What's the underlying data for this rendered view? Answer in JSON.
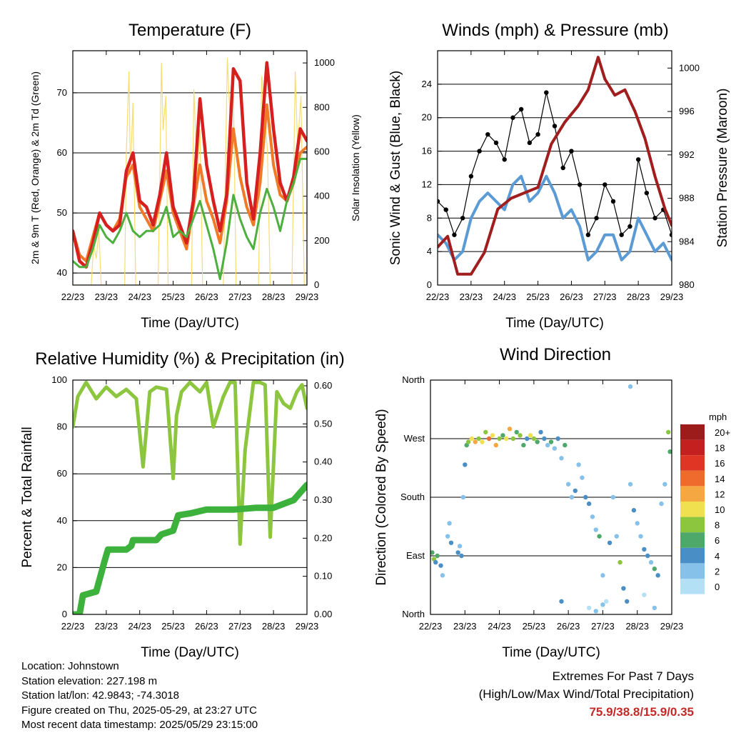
{
  "colors": {
    "temp2m": "#d62020",
    "temp9m": "#f07a28",
    "dewpoint": "#4caf3e",
    "solar": "#f7dc6f",
    "gust": "#000000",
    "wind": "#5b9bd5",
    "pressure": "#a01e1e",
    "rh": "#8cc63e",
    "precip": "#3cb13c",
    "speed_scale": [
      "#b3e0f5",
      "#85c1e9",
      "#4a8ec6",
      "#4ea86a",
      "#8cc63e",
      "#f0e050",
      "#f5a742",
      "#ef6b2d",
      "#e03425",
      "#c42020",
      "#9c1c1c"
    ]
  },
  "x_ticks": [
    "22/23",
    "23/23",
    "24/23",
    "25/23",
    "26/23",
    "27/23",
    "28/23",
    "29/23"
  ],
  "x_label": "Time (Day/UTC)",
  "chart_data": [
    {
      "id": "temperature",
      "type": "line",
      "title": "Temperature (F)",
      "xlabel": "Time (Day/UTC)",
      "ylabel": "2m & 9m T (Red, Orange) & 2m Td (Green)",
      "y2label": "Solar Insolation (Yellow)",
      "ylim": [
        38,
        77
      ],
      "yticks": [
        40,
        50,
        60,
        70
      ],
      "y2lim": [
        0,
        1055
      ],
      "y2ticks": [
        0,
        200,
        400,
        600,
        800,
        1000
      ],
      "xlim": [
        0,
        7
      ],
      "series": [
        {
          "key": "solar",
          "axis": "y2",
          "x": [
            0,
            0.3,
            0.55,
            0.62,
            0.7,
            0.78,
            0.85,
            1.2,
            1.55,
            1.6,
            1.68,
            1.72,
            1.8,
            1.88,
            2.2,
            2.55,
            2.65,
            2.7,
            2.78,
            2.85,
            3.2,
            3.55,
            3.62,
            3.72,
            3.8,
            3.88,
            4.2,
            4.5,
            4.62,
            4.7,
            4.8,
            4.88,
            5.2,
            5.55,
            5.65,
            5.72,
            5.82,
            5.9,
            6.2,
            6.55,
            6.65,
            6.72,
            6.82,
            6.92,
            7.0
          ],
          "values": [
            0,
            0,
            0,
            180,
            120,
            240,
            0,
            0,
            0,
            600,
            960,
            500,
            820,
            0,
            0,
            0,
            1000,
            700,
            850,
            0,
            0,
            0,
            880,
            500,
            700,
            0,
            0,
            0,
            1020,
            750,
            900,
            0,
            0,
            0,
            940,
            800,
            600,
            0,
            0,
            0,
            960,
            620,
            850,
            0,
            0
          ]
        },
        {
          "key": "temp9m",
          "axis": "y",
          "x": [
            0,
            0.2,
            0.4,
            0.6,
            0.8,
            1.0,
            1.2,
            1.4,
            1.6,
            1.8,
            2.0,
            2.2,
            2.4,
            2.6,
            2.8,
            3.0,
            3.2,
            3.4,
            3.6,
            3.8,
            4.0,
            4.2,
            4.4,
            4.6,
            4.8,
            5.0,
            5.2,
            5.4,
            5.6,
            5.8,
            6.0,
            6.2,
            6.4,
            6.6,
            6.8,
            7.0
          ],
          "values": [
            47,
            43,
            42,
            46,
            50,
            48,
            47,
            49,
            56,
            58,
            51,
            49,
            47,
            52,
            57,
            50,
            47,
            44,
            51,
            58,
            52,
            49,
            45,
            52,
            64,
            56,
            51,
            48,
            55,
            68,
            58,
            53,
            52,
            55,
            60,
            61
          ]
        },
        {
          "key": "temp2m",
          "axis": "y",
          "x": [
            0,
            0.2,
            0.4,
            0.6,
            0.8,
            1.0,
            1.2,
            1.4,
            1.6,
            1.8,
            2.0,
            2.2,
            2.4,
            2.6,
            2.8,
            3.0,
            3.2,
            3.4,
            3.6,
            3.8,
            4.0,
            4.2,
            4.4,
            4.6,
            4.8,
            5.0,
            5.2,
            5.4,
            5.6,
            5.8,
            6.0,
            6.2,
            6.4,
            6.6,
            6.8,
            7.0
          ],
          "values": [
            47,
            42,
            41,
            45,
            50,
            48,
            47,
            48,
            57,
            60,
            52,
            51,
            48,
            53,
            60,
            51,
            48,
            45,
            52,
            69,
            58,
            52,
            47,
            53,
            74,
            72,
            55,
            49,
            60,
            75,
            64,
            55,
            52,
            56,
            64,
            62
          ]
        },
        {
          "key": "dewpoint",
          "axis": "y",
          "x": [
            0,
            0.2,
            0.4,
            0.6,
            0.8,
            1.0,
            1.2,
            1.4,
            1.6,
            1.8,
            2.0,
            2.2,
            2.4,
            2.6,
            2.8,
            3.0,
            3.2,
            3.4,
            3.6,
            3.8,
            4.0,
            4.2,
            4.4,
            4.6,
            4.8,
            5.0,
            5.2,
            5.4,
            5.6,
            5.8,
            6.0,
            6.2,
            6.4,
            6.6,
            6.8,
            7.0
          ],
          "values": [
            42,
            41,
            41,
            44,
            48,
            46,
            45,
            47,
            50,
            47,
            46,
            47,
            47,
            48,
            51,
            46,
            47,
            46,
            49,
            52,
            48,
            44,
            39,
            45,
            53,
            49,
            46,
            44,
            50,
            54,
            51,
            47,
            52,
            55,
            59,
            59
          ]
        }
      ]
    },
    {
      "id": "winds",
      "type": "line",
      "title": "Winds (mph) & Pressure (mb)",
      "xlabel": "Time (Day/UTC)",
      "ylabel": "Sonic Wind & Gust (Blue, Black)",
      "y2label": "Station Pressure (Maroon)",
      "ylim": [
        0,
        28
      ],
      "yticks": [
        0,
        4,
        8,
        12,
        16,
        20,
        24
      ],
      "y2lim": [
        980,
        1001.6
      ],
      "y2ticks": [
        980,
        984,
        988,
        992,
        996,
        1000
      ],
      "xlim": [
        0,
        7
      ],
      "series": [
        {
          "key": "gust",
          "axis": "y",
          "x": [
            0,
            0.25,
            0.5,
            0.75,
            1.0,
            1.25,
            1.5,
            1.75,
            2.0,
            2.25,
            2.5,
            2.75,
            3.0,
            3.25,
            3.5,
            3.75,
            4.0,
            4.25,
            4.5,
            4.75,
            5.0,
            5.25,
            5.5,
            5.75,
            6.0,
            6.25,
            6.5,
            6.75,
            7.0
          ],
          "values": [
            10,
            9,
            6,
            8,
            13,
            16,
            18,
            17,
            15,
            20,
            21,
            17,
            18,
            23,
            19,
            14,
            16,
            12,
            6,
            8,
            12,
            10,
            6,
            7,
            15,
            11,
            8,
            9,
            6
          ]
        },
        {
          "key": "wind",
          "axis": "y",
          "x": [
            0,
            0.25,
            0.5,
            0.75,
            1.0,
            1.25,
            1.5,
            1.75,
            2.0,
            2.25,
            2.5,
            2.75,
            3.0,
            3.25,
            3.5,
            3.75,
            4.0,
            4.25,
            4.5,
            4.75,
            5.0,
            5.25,
            5.5,
            5.75,
            6.0,
            6.25,
            6.5,
            6.75,
            7.0
          ],
          "values": [
            6,
            5,
            3,
            4,
            8,
            10,
            11,
            10,
            9,
            12,
            13,
            10,
            11,
            13,
            11,
            8,
            9,
            7,
            3,
            4,
            6,
            6,
            3,
            4,
            8,
            6,
            4,
            5,
            3
          ]
        },
        {
          "key": "pressure",
          "axis": "y2",
          "x": [
            0,
            0.3,
            0.6,
            1.0,
            1.4,
            1.8,
            2.2,
            2.6,
            3.0,
            3.4,
            3.8,
            4.2,
            4.5,
            4.8,
            5.0,
            5.3,
            5.6,
            5.9,
            6.2,
            6.5,
            6.8,
            7.0
          ],
          "values": [
            983.5,
            984.5,
            981,
            981,
            983,
            987,
            988,
            988.5,
            989,
            993,
            995,
            996.5,
            998,
            1001,
            999,
            997.5,
            998,
            996,
            993.5,
            990,
            987,
            985.5
          ]
        }
      ]
    },
    {
      "id": "humidity",
      "type": "line",
      "title": "Relative Humidity (%) & Precipitation (in)",
      "xlabel": "Time (Day/UTC)",
      "ylabel": "Percent & Total Rainfall",
      "ylim": [
        0,
        100
      ],
      "yticks": [
        0,
        20,
        40,
        60,
        80,
        100
      ],
      "y2lim": [
        0,
        0.615
      ],
      "y2ticks": [
        "0.00",
        "0.10",
        "0.20",
        "0.30",
        "0.40",
        "0.50",
        "0.60"
      ],
      "xlim": [
        0,
        7
      ],
      "series": [
        {
          "key": "rh",
          "axis": "y",
          "x": [
            0,
            0.15,
            0.4,
            0.7,
            1.0,
            1.3,
            1.6,
            1.9,
            2.1,
            2.3,
            2.5,
            2.8,
            3.0,
            3.1,
            3.25,
            3.5,
            3.8,
            4.0,
            4.2,
            4.5,
            4.7,
            4.85,
            5.0,
            5.15,
            5.4,
            5.6,
            5.75,
            5.9,
            6.1,
            6.3,
            6.5,
            6.7,
            6.85,
            7.0
          ],
          "values": [
            80,
            93,
            99,
            92,
            97,
            93,
            96,
            92,
            63,
            95,
            97,
            96,
            58,
            85,
            95,
            99,
            95,
            99,
            80,
            93,
            99,
            99,
            30,
            70,
            99,
            99,
            98,
            33,
            95,
            90,
            88,
            95,
            98,
            88
          ]
        },
        {
          "key": "precip",
          "axis": "y2",
          "x": [
            0,
            0.2,
            0.3,
            0.7,
            0.95,
            1.05,
            1.6,
            1.75,
            1.8,
            2.5,
            2.65,
            3.0,
            3.15,
            3.5,
            4.0,
            4.8,
            5.5,
            6.0,
            6.3,
            6.6,
            7.0
          ],
          "values": [
            0,
            0,
            0.05,
            0.06,
            0.14,
            0.17,
            0.17,
            0.18,
            0.195,
            0.195,
            0.21,
            0.22,
            0.26,
            0.265,
            0.275,
            0.275,
            0.28,
            0.28,
            0.29,
            0.3,
            0.34
          ]
        }
      ]
    },
    {
      "id": "direction",
      "type": "scatter",
      "title": "Wind Direction",
      "xlabel": "Time (Day/UTC)",
      "ylabel": "Direction (Colored By Speed)",
      "yticks": [
        "North",
        "East",
        "South",
        "West",
        "North"
      ],
      "ylim": [
        0,
        360
      ],
      "xlim": [
        0,
        7
      ],
      "legend_title": "mph",
      "legend_labels": [
        "0",
        "2",
        "4",
        "6",
        "8",
        "10",
        "12",
        "14",
        "16",
        "18",
        "20+"
      ],
      "x": [
        0.05,
        0.1,
        0.15,
        0.2,
        0.3,
        0.35,
        0.5,
        0.55,
        0.6,
        0.8,
        0.85,
        0.9,
        0.95,
        1.0,
        1.05,
        1.1,
        1.2,
        1.3,
        1.4,
        1.5,
        1.6,
        1.7,
        1.8,
        1.9,
        2.0,
        2.1,
        2.2,
        2.3,
        2.4,
        2.5,
        2.6,
        2.7,
        2.8,
        2.9,
        3.0,
        3.1,
        3.2,
        3.3,
        3.4,
        3.5,
        3.6,
        3.7,
        3.8,
        3.9,
        4.0,
        4.1,
        4.2,
        4.3,
        4.4,
        4.5,
        4.6,
        4.7,
        4.8,
        4.9,
        5.0,
        5.1,
        5.2,
        5.3,
        5.4,
        5.5,
        5.6,
        5.7,
        5.8,
        5.9,
        6.0,
        6.1,
        6.2,
        6.3,
        6.4,
        6.5,
        6.6,
        6.7,
        6.8,
        6.9,
        6.95,
        3.8,
        4.6,
        4.8,
        5.0,
        5.8,
        6.2,
        6.5
      ],
      "y": [
        95,
        85,
        80,
        90,
        75,
        60,
        120,
        140,
        110,
        95,
        105,
        90,
        180,
        230,
        260,
        265,
        270,
        265,
        270,
        265,
        280,
        270,
        275,
        260,
        270,
        275,
        270,
        285,
        270,
        280,
        275,
        260,
        270,
        275,
        270,
        265,
        280,
        270,
        260,
        265,
        255,
        270,
        240,
        260,
        200,
        180,
        190,
        230,
        210,
        180,
        170,
        150,
        130,
        120,
        60,
        20,
        110,
        180,
        120,
        80,
        40,
        20,
        200,
        160,
        140,
        120,
        100,
        90,
        80,
        70,
        60,
        170,
        200,
        280,
        250,
        20,
        10,
        5,
        15,
        350,
        30,
        10
      ],
      "speed": [
        6,
        8,
        5,
        7,
        4,
        3,
        2,
        3,
        4,
        4,
        3,
        5,
        2,
        4,
        6,
        8,
        10,
        12,
        9,
        11,
        8,
        14,
        10,
        12,
        9,
        7,
        11,
        13,
        8,
        6,
        9,
        7,
        5,
        10,
        8,
        6,
        4,
        5,
        3,
        7,
        2,
        5,
        3,
        6,
        2,
        3,
        4,
        3,
        2,
        5,
        4,
        2,
        3,
        6,
        2,
        1,
        4,
        3,
        2,
        9,
        5,
        4,
        3,
        4,
        3,
        2,
        4,
        5,
        3,
        6,
        4,
        3,
        2,
        8,
        6,
        4,
        1,
        2,
        3,
        2,
        1,
        3
      ]
    }
  ],
  "footer": {
    "location": "Location: Johnstown",
    "elevation": "Station elevation: 227.198 m",
    "latlon": "Station lat/lon: 42.9843; -74.3018",
    "created": "Figure created on Thu, 2025-05-29, at 23:27 UTC",
    "recent": "Most recent data timestamp: 2025/05/29 23:15:00"
  },
  "extremes": {
    "line1": "Extremes For Past 7 Days",
    "line2": "(High/Low/Max Wind/Total Precipitation)",
    "values": "75.9/38.8/15.9/0.35"
  }
}
